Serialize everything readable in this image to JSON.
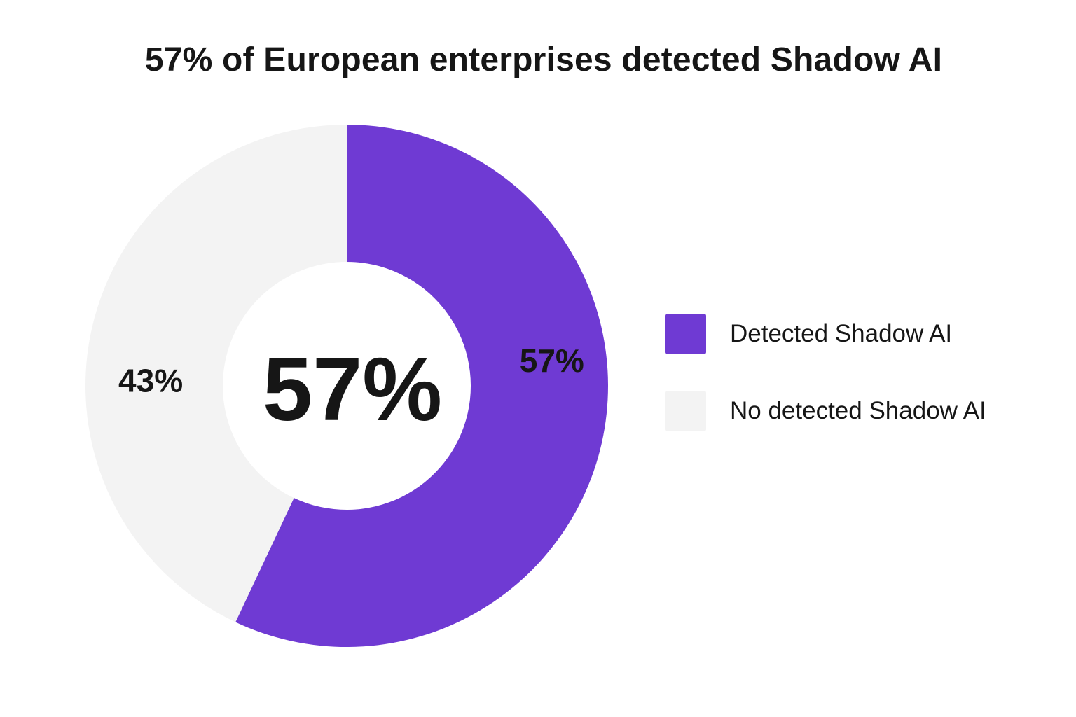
{
  "chart_data": {
    "type": "pie",
    "title": "57% of European enterprises detected Shadow AI",
    "center_label": "57%",
    "slices": [
      {
        "label": "Detected Shadow AI",
        "value": 57,
        "value_label": "57%",
        "color": "#6f3ad3"
      },
      {
        "label": "No detected Shadow AI",
        "value": 43,
        "value_label": "43%",
        "color": "#f3f3f3"
      }
    ],
    "legend_position": "right"
  }
}
